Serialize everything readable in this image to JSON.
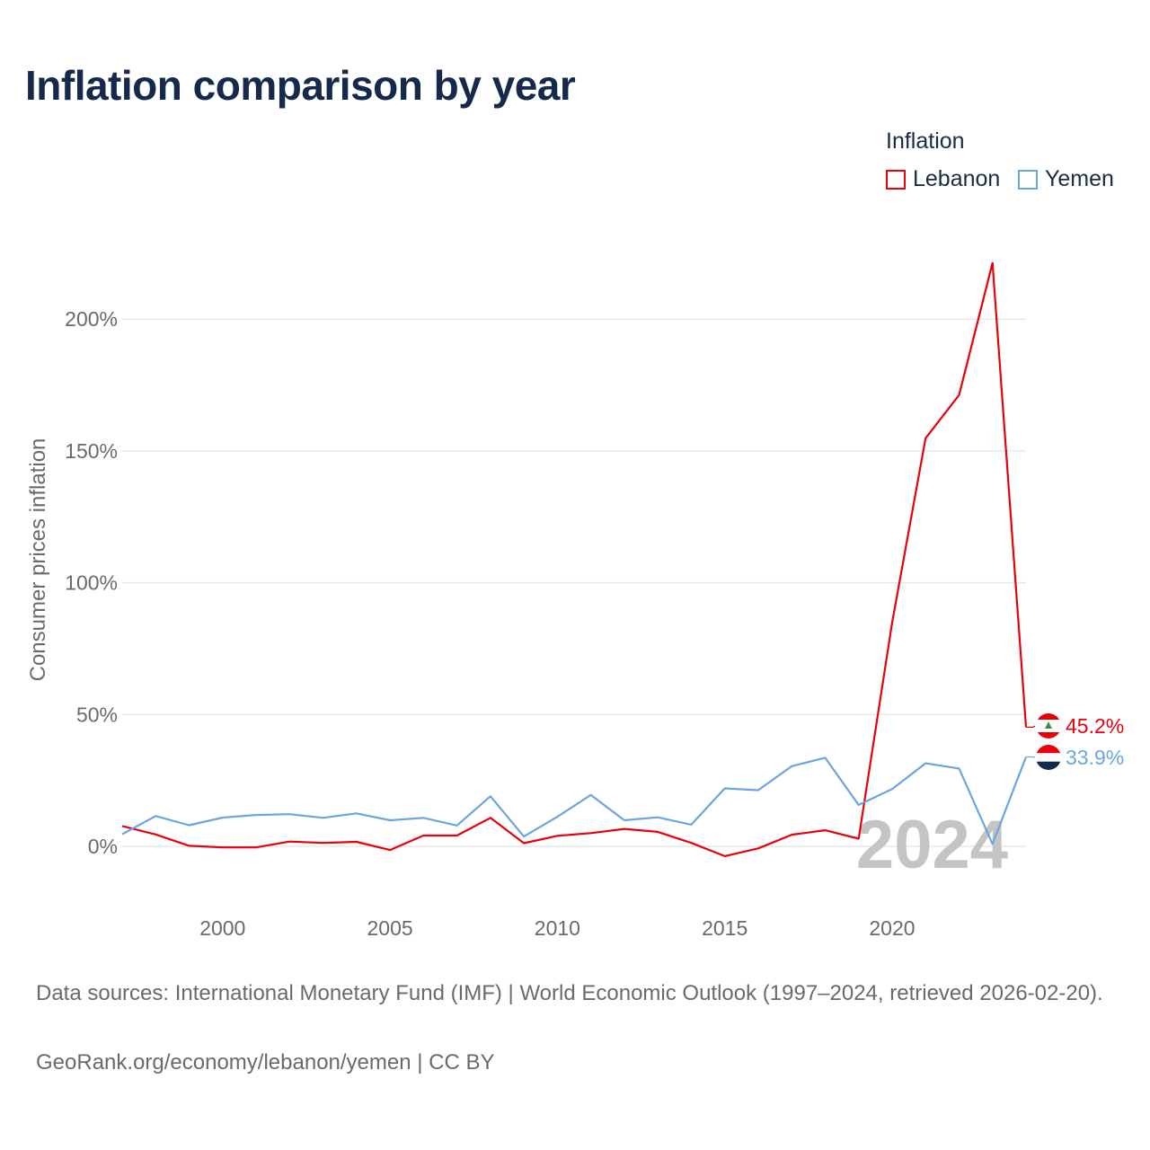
{
  "title": "Inflation comparison by year",
  "legend": {
    "title": "Inflation",
    "items": [
      {
        "name": "Lebanon",
        "color": "#e8000b"
      },
      {
        "name": "Yemen",
        "color": "#6aa6de"
      }
    ]
  },
  "chart_data": {
    "type": "line",
    "ylabel": "Consumer prices inflation",
    "xlabel": "",
    "ylim": [
      -20,
      240
    ],
    "xlim": [
      1997,
      2024
    ],
    "y_ticks": [
      0,
      50,
      100,
      150,
      200
    ],
    "y_tick_labels": [
      "0%",
      "50%",
      "100%",
      "150%",
      "200%"
    ],
    "x_ticks": [
      2000,
      2005,
      2010,
      2015,
      2020
    ],
    "x_tick_labels": [
      "2000",
      "2005",
      "2010",
      "2015",
      "2020"
    ],
    "grid": true,
    "year_watermark": "2024",
    "x": [
      1997,
      1998,
      1999,
      2000,
      2001,
      2002,
      2003,
      2004,
      2005,
      2006,
      2007,
      2008,
      2009,
      2010,
      2011,
      2012,
      2013,
      2014,
      2015,
      2016,
      2017,
      2018,
      2019,
      2020,
      2021,
      2022,
      2023,
      2024
    ],
    "series": [
      {
        "name": "Lebanon",
        "color": "#e8000b",
        "values": [
          7.7,
          4.5,
          0.2,
          -0.4,
          -0.4,
          1.8,
          1.3,
          1.7,
          -1.4,
          4.1,
          4.1,
          10.8,
          1.2,
          4.0,
          5.0,
          6.6,
          5.5,
          1.3,
          -3.7,
          -0.8,
          4.4,
          6.1,
          2.9,
          84.9,
          154.8,
          171.2,
          221.3,
          45.2
        ],
        "end_label": "45.2%"
      },
      {
        "name": "Yemen",
        "color": "#6aa6de",
        "values": [
          4.6,
          11.5,
          8.0,
          10.9,
          11.9,
          12.2,
          10.8,
          12.5,
          9.9,
          10.8,
          7.9,
          19.0,
          3.7,
          11.2,
          19.5,
          9.9,
          11.0,
          8.2,
          22.0,
          21.3,
          30.4,
          33.6,
          15.7,
          21.7,
          31.5,
          29.5,
          0.9,
          33.9
        ],
        "end_label": "33.9%"
      }
    ]
  },
  "footer": {
    "source": "Data sources: International Monetary Fund (IMF) | World Economic Outlook (1997–2024, retrieved 2026-02-20).",
    "credit": "GeoRank.org/economy/lebanon/yemen | CC BY"
  }
}
